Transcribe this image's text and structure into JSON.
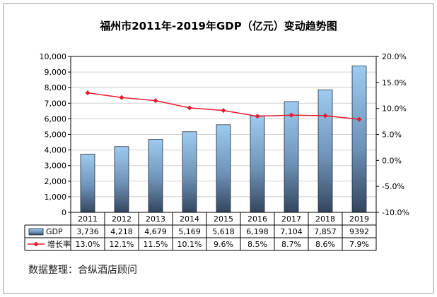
{
  "chart_data": {
    "type": "bar",
    "title": "福州市2011年-2019年GDP（亿元）变动趋势图",
    "categories": [
      "2011",
      "2012",
      "2013",
      "2014",
      "2015",
      "2016",
      "2017",
      "2018",
      "2019"
    ],
    "series": [
      {
        "name": "GDP",
        "type": "bar",
        "axis": "left",
        "values": [
          3736,
          4218,
          4679,
          5169,
          5618,
          6198,
          7104,
          7857,
          9392
        ],
        "labels": [
          "3,736",
          "4,218",
          "4,679",
          "5,169",
          "5,618",
          "6,198",
          "7,104",
          "7,857",
          "9392"
        ],
        "color": "#6ea6d6"
      },
      {
        "name": "增长率",
        "type": "line",
        "axis": "right",
        "values": [
          13.0,
          12.1,
          11.5,
          10.1,
          9.6,
          8.5,
          8.7,
          8.6,
          7.9
        ],
        "labels": [
          "13.0%",
          "12.1%",
          "11.5%",
          "10.1%",
          "9.6%",
          "8.5%",
          "8.7%",
          "8.6%",
          "7.9%"
        ],
        "color": "#e8192c"
      }
    ],
    "left_axis": {
      "ylim": [
        0,
        10000
      ],
      "ticks": [
        0,
        1000,
        2000,
        3000,
        4000,
        5000,
        6000,
        7000,
        8000,
        9000,
        10000
      ],
      "tick_labels": [
        "0",
        "1,000",
        "2,000",
        "3,000",
        "4,000",
        "5,000",
        "6,000",
        "7,000",
        "8,000",
        "9,000",
        "10,000"
      ]
    },
    "right_axis": {
      "ylim": [
        -10,
        20
      ],
      "ticks": [
        -10,
        -5,
        0,
        5,
        10,
        15,
        20
      ],
      "tick_labels": [
        "-10.0%",
        "-5.0%",
        "0.0%",
        "5.0%",
        "10.0%",
        "15.0%",
        "20.0%"
      ]
    },
    "grid": true,
    "legend": "data-table"
  },
  "source_note": "数据整理：合纵酒店顾问",
  "colors": {
    "bar_top": "#9ecbf0",
    "bar_bottom": "#33465e",
    "line": "#e8192c",
    "grid": "#cfcfcf",
    "border": "#000000"
  }
}
